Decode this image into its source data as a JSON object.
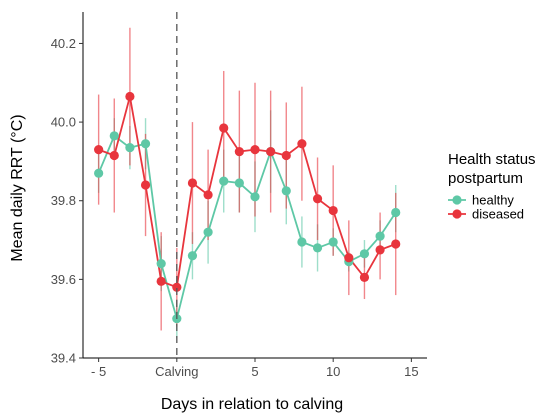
{
  "chart_data": {
    "type": "line",
    "xlabel": "Days in relation to calving",
    "ylabel": "Mean daily RRT (°C)",
    "xlim": [
      -6,
      16
    ],
    "ylim": [
      39.4,
      40.28
    ],
    "x_ticks": [
      {
        "value": -5,
        "label": "- 5"
      },
      {
        "value": 0,
        "label": "Calving"
      },
      {
        "value": 5,
        "label": "5"
      },
      {
        "value": 10,
        "label": "10"
      },
      {
        "value": 15,
        "label": "15"
      }
    ],
    "y_ticks": [
      {
        "value": 39.4,
        "label": "39.4"
      },
      {
        "value": 39.6,
        "label": "39.6"
      },
      {
        "value": 39.8,
        "label": "39.8"
      },
      {
        "value": 40.0,
        "label": "40.0"
      },
      {
        "value": 40.2,
        "label": "40.2"
      }
    ],
    "reference_line": {
      "x": 0,
      "style": "dashed"
    },
    "legend": {
      "title": "Health status postpartum",
      "title_lines": [
        "Health status",
        "postpartum"
      ],
      "position": "right"
    },
    "grid": false,
    "series": [
      {
        "name": "healthy",
        "color": "#5ec8a6",
        "x": [
          -5,
          -4,
          -3,
          -2,
          -1,
          0,
          1,
          2,
          3,
          4,
          5,
          6,
          7,
          8,
          9,
          10,
          11,
          12,
          13,
          14
        ],
        "y": [
          39.87,
          39.965,
          39.935,
          39.945,
          39.64,
          39.5,
          39.66,
          39.72,
          39.85,
          39.845,
          39.81,
          39.925,
          39.825,
          39.695,
          39.68,
          39.695,
          39.645,
          39.665,
          39.71,
          39.77
        ],
        "err_low": [
          39.82,
          39.92,
          39.88,
          39.88,
          39.57,
          39.45,
          39.6,
          39.64,
          39.77,
          39.77,
          39.72,
          39.82,
          39.74,
          39.63,
          39.62,
          39.66,
          39.62,
          39.63,
          39.67,
          39.72
        ],
        "err_high": [
          39.92,
          40.01,
          39.99,
          40.01,
          39.71,
          39.55,
          39.72,
          39.8,
          39.93,
          39.92,
          39.9,
          40.03,
          39.91,
          39.76,
          39.74,
          39.73,
          39.67,
          39.7,
          39.75,
          39.84
        ]
      },
      {
        "name": "diseased",
        "color": "#e8353d",
        "x": [
          -5,
          -4,
          -3,
          -2,
          -1,
          0,
          1,
          2,
          3,
          4,
          5,
          6,
          7,
          8,
          9,
          10,
          11,
          12,
          13,
          14
        ],
        "y": [
          39.93,
          39.915,
          40.065,
          39.84,
          39.595,
          39.58,
          39.845,
          39.815,
          39.985,
          39.925,
          39.93,
          39.925,
          39.915,
          39.945,
          39.805,
          39.775,
          39.655,
          39.605,
          39.675,
          39.69
        ],
        "err_low": [
          39.79,
          39.77,
          39.89,
          39.71,
          39.47,
          39.48,
          39.69,
          39.7,
          39.84,
          39.77,
          39.76,
          39.77,
          39.78,
          39.8,
          39.7,
          39.66,
          39.56,
          39.55,
          39.6,
          39.56
        ],
        "err_high": [
          40.07,
          40.06,
          40.24,
          39.97,
          39.72,
          39.68,
          40.0,
          39.93,
          40.13,
          40.08,
          40.1,
          40.08,
          40.05,
          40.09,
          39.91,
          39.89,
          39.75,
          39.66,
          39.77,
          39.82
        ]
      }
    ]
  }
}
